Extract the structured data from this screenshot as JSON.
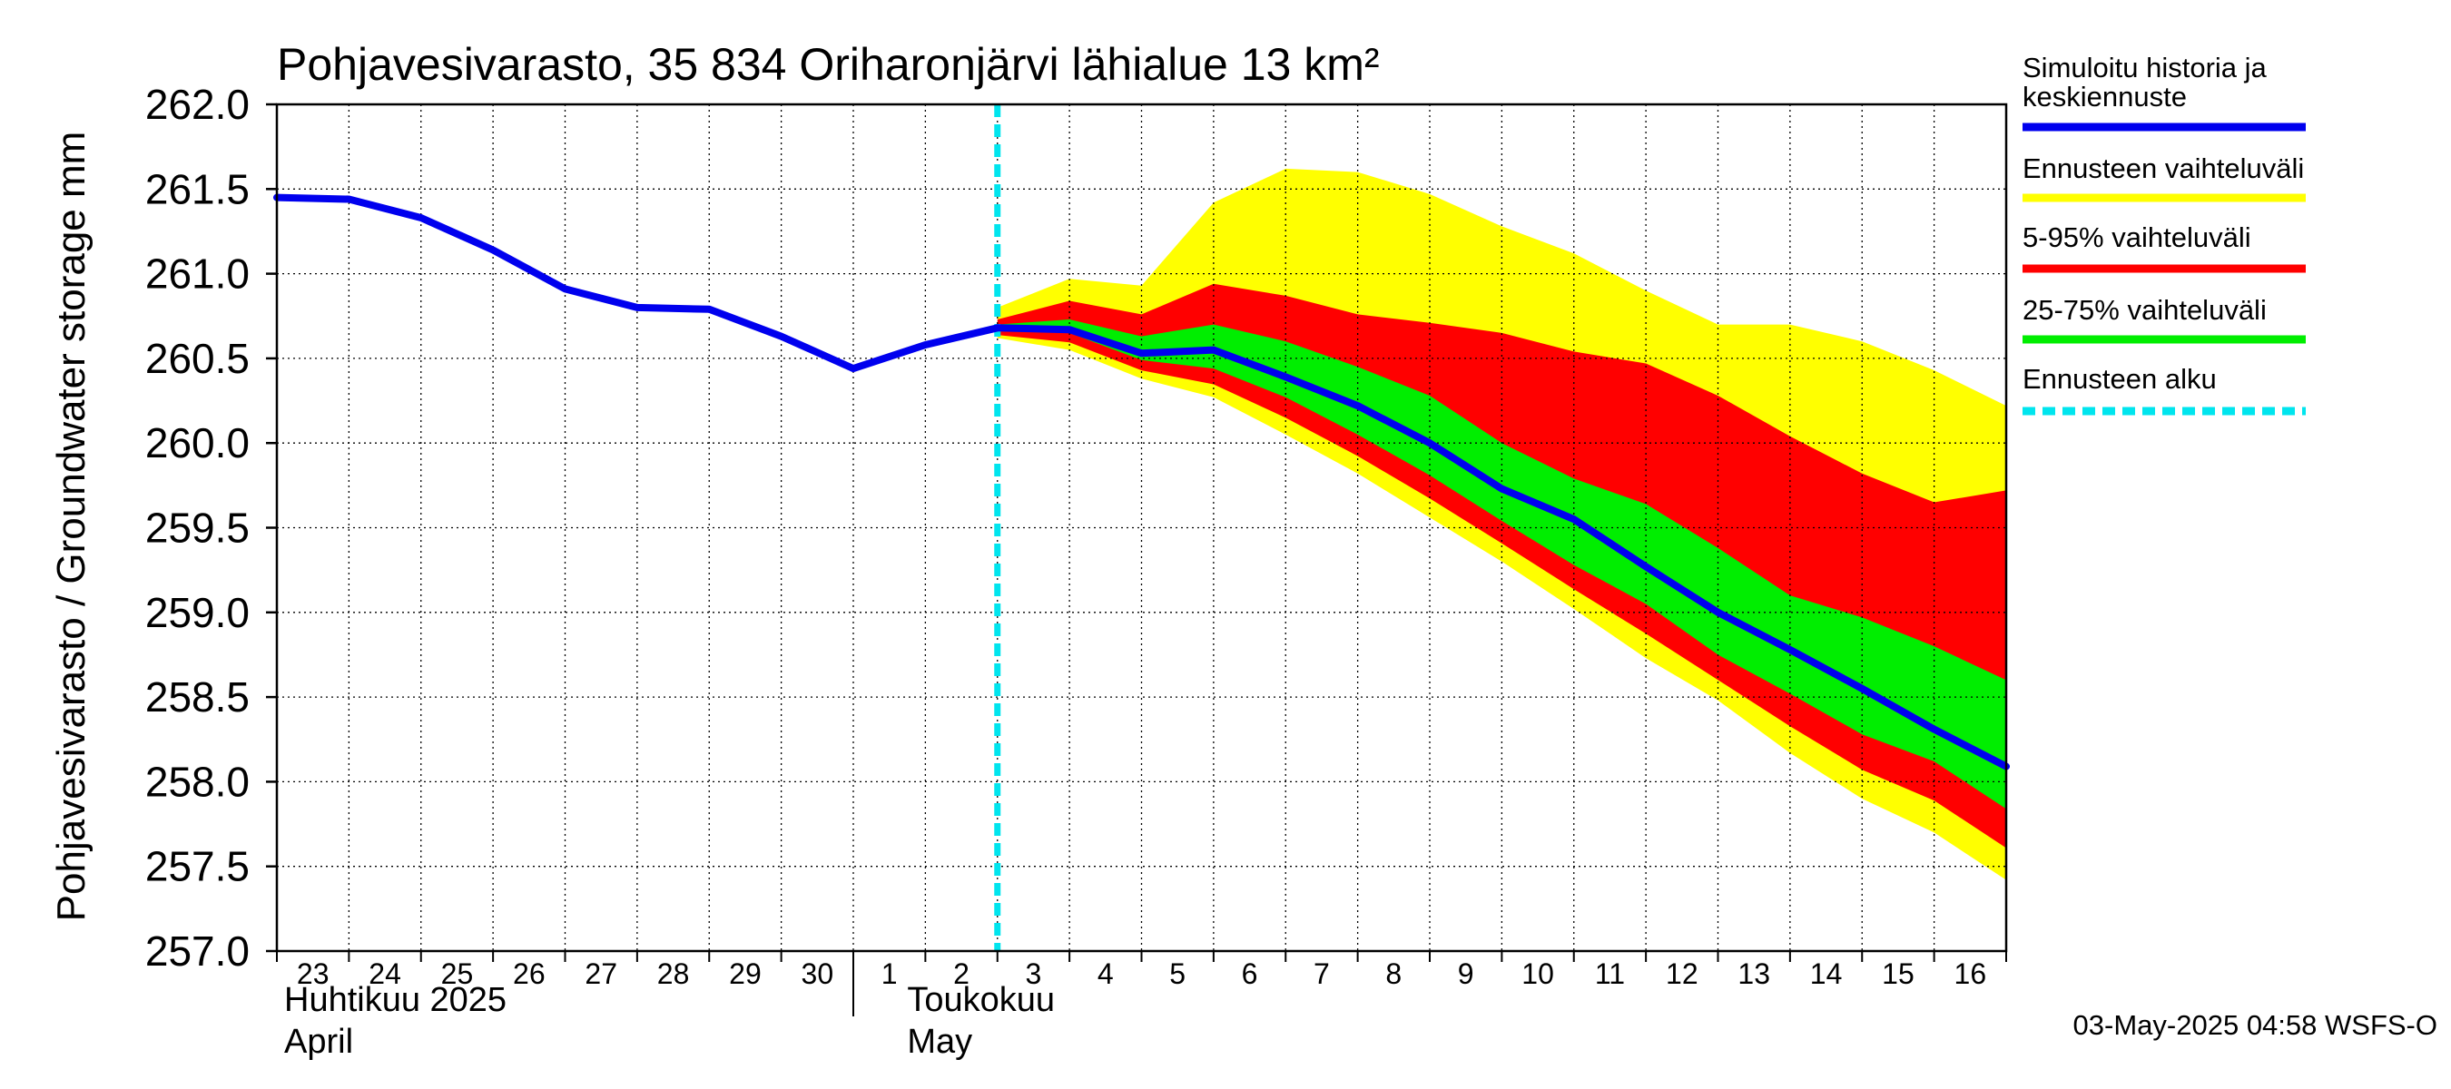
{
  "chart_data": {
    "type": "area",
    "title": "Pohjavesivarasto, 35 834 Oriharonjärvi lähialue 13 km²",
    "ylabel": "Pohjavesivarasto / Groundwater storage   mm",
    "ylim": [
      257.0,
      262.0
    ],
    "yticks": [
      "257.0",
      "257.5",
      "258.0",
      "258.5",
      "259.0",
      "259.5",
      "260.0",
      "260.5",
      "261.0",
      "261.5",
      "262.0"
    ],
    "xlim": [
      0,
      24
    ],
    "xtick_labels": [
      "23",
      "24",
      "25",
      "26",
      "27",
      "28",
      "29",
      "30",
      "1",
      "2",
      "3",
      "4",
      "5",
      "6",
      "7",
      "8",
      "9",
      "10",
      "11",
      "12",
      "13",
      "14",
      "15",
      "16"
    ],
    "month_labels": [
      {
        "line1": "Huhtikuu  2025",
        "line2": "April"
      },
      {
        "line1": "Toukokuu",
        "line2": "May"
      }
    ],
    "forecast_start_x": 10.0,
    "history": {
      "x": [
        0,
        1,
        2,
        3,
        4,
        5,
        6,
        7,
        8,
        9,
        10
      ],
      "y": [
        261.45,
        261.44,
        261.33,
        261.14,
        260.91,
        260.8,
        260.79,
        260.63,
        260.44,
        260.58,
        260.68
      ]
    },
    "forecast_x": [
      10,
      11,
      12,
      13,
      14,
      15,
      16,
      17,
      18,
      19,
      20,
      21,
      22,
      23,
      24
    ],
    "series": [
      {
        "name": "Ennusteen vaihteluväli",
        "color": "#ffff00",
        "upper": [
          260.8,
          260.97,
          260.93,
          261.42,
          261.62,
          261.6,
          261.47,
          261.28,
          261.12,
          260.9,
          260.7,
          260.7,
          260.6,
          260.43,
          260.22
        ],
        "lower": [
          260.62,
          260.55,
          260.38,
          260.27,
          260.05,
          259.82,
          259.56,
          259.3,
          259.02,
          258.73,
          258.48,
          258.17,
          257.9,
          257.7,
          257.42
        ]
      },
      {
        "name": "5-95% vaihteluväli",
        "color": "#ff0000",
        "upper": [
          260.73,
          260.84,
          260.76,
          260.94,
          260.87,
          260.76,
          260.71,
          260.65,
          260.54,
          260.47,
          260.28,
          260.04,
          259.82,
          259.65,
          259.72
        ]
      },
      {
        "name": "25-75% vaihteluväli",
        "color": "#00ee00",
        "upper": [
          260.7,
          260.73,
          260.63,
          260.7,
          260.6,
          260.45,
          260.28,
          260.0,
          259.79,
          259.64,
          259.38,
          259.1,
          258.97,
          258.8,
          258.6
        ],
        "lower": [
          260.66,
          260.65,
          260.49,
          260.44,
          260.27,
          260.05,
          259.81,
          259.54,
          259.28,
          259.05,
          258.75,
          258.52,
          258.28,
          258.12,
          257.84
        ]
      },
      {
        "name": "Simuloitu historia ja keskiennuste",
        "color": "#0000ee",
        "y": [
          260.68,
          260.67,
          260.53,
          260.55,
          260.39,
          260.22,
          260.0,
          259.73,
          259.55,
          259.27,
          259.0,
          258.78,
          258.55,
          258.31,
          258.09
        ]
      }
    ],
    "legend": [
      {
        "label": "Simuloitu historia ja keskiennuste",
        "line1": "Simuloitu historia ja",
        "line2": "keskiennuste",
        "color": "#0000ee",
        "style": "solid"
      },
      {
        "label": "Ennusteen vaihteluväli",
        "color": "#ffff00",
        "style": "solid"
      },
      {
        "label": "5-95% vaihteluväli",
        "color": "#ff0000",
        "style": "solid"
      },
      {
        "label": "25-75% vaihteluväli",
        "color": "#00ee00",
        "style": "solid"
      },
      {
        "label": "Ennusteen alku",
        "color": "#00e5ee",
        "style": "dashed"
      }
    ],
    "legend_position": "right",
    "forecast_start_color": "#00e5ee"
  },
  "footer": "03-May-2025 04:58 WSFS-O"
}
